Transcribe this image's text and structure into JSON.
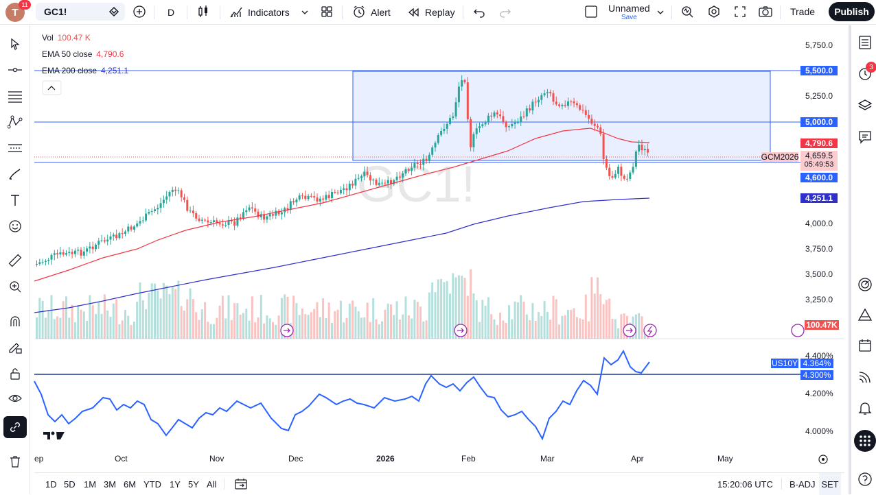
{
  "topbar": {
    "avatar_letter": "T",
    "notif_count": "11",
    "symbol": "GC1!",
    "interval": "D",
    "indicators_label": "Indicators",
    "alert_label": "Alert",
    "replay_label": "Replay",
    "layout_name": "Unnamed",
    "save_label": "Save",
    "trade_label": "Trade",
    "publish_label": "Publish"
  },
  "legend": {
    "vol_label": "Vol",
    "vol_value": "100.47 K",
    "ema50_label": "EMA 50 close",
    "ema50_value": "4,790.6",
    "ema200_label": "EMA 200 close",
    "ema200_value": "4,251.1"
  },
  "watermark": "GC1!",
  "price_axis": [
    "5,750.0",
    "5,250.0",
    "4,000.0",
    "3,750.0",
    "3,500.0",
    "3,250.0"
  ],
  "price_tags": {
    "p5500": "5,500.0",
    "p5000": "5,000.0",
    "ema50": "4,790.6",
    "last_price": "4,659.5",
    "countdown": "05:49:53",
    "contract": "GCM2026",
    "p4600": "4,600.0",
    "ema200": "4,251.1",
    "volume": "100.47K"
  },
  "sub_axis": [
    "4.400%",
    "4.200%",
    "4.000%"
  ],
  "sub_tags": {
    "symbol": "US10Y",
    "value": "4.364%",
    "line": "4.300%"
  },
  "time_axis": [
    "ep",
    "Oct",
    "Nov",
    "Dec",
    "2026",
    "Feb",
    "Mar",
    "Apr",
    "May"
  ],
  "bottom": {
    "ranges": [
      "1D",
      "5D",
      "1M",
      "3M",
      "6M",
      "YTD",
      "1Y",
      "5Y",
      "All"
    ],
    "clock": "15:20:06 UTC",
    "badj": "B-ADJ",
    "set": "SET"
  },
  "right_badge": "3",
  "colors": {
    "up": "#26a69a",
    "down": "#ef5350",
    "ema50": "#f23645",
    "ema200": "#2f2fc9",
    "line": "#2962ff",
    "box": "#2962ff"
  }
}
